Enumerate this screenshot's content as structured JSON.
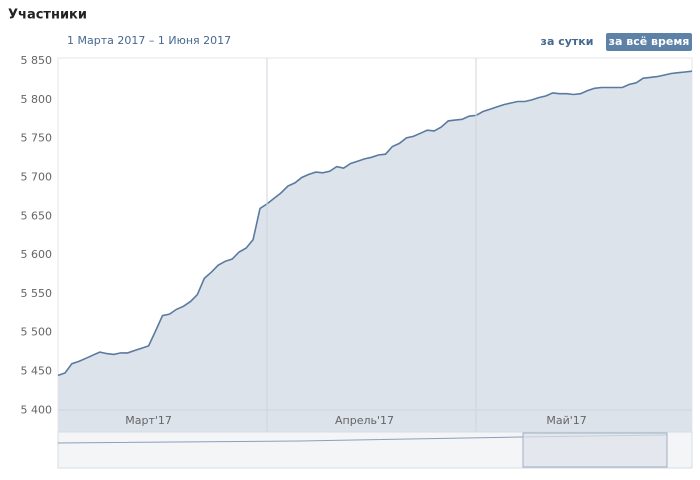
{
  "header": {
    "title": "Участники",
    "period": "1 Марта 2017 – 1 Июня 2017",
    "buttons": [
      "за сутки",
      "за всё время"
    ]
  },
  "chart_data": {
    "type": "area",
    "categories": [
      null,
      null,
      null,
      null,
      null,
      null,
      null,
      null,
      null,
      null,
      null,
      null,
      null,
      "Март'17",
      null,
      null,
      null,
      null,
      null,
      null,
      null,
      null,
      null,
      null,
      null,
      null,
      null,
      null,
      null,
      null,
      null,
      null,
      null,
      null,
      null,
      null,
      null,
      null,
      null,
      null,
      null,
      null,
      null,
      null,
      "Апрель'17",
      null,
      null,
      null,
      null,
      null,
      null,
      null,
      null,
      null,
      null,
      null,
      null,
      null,
      null,
      null,
      null,
      null,
      null,
      null,
      null,
      null,
      null,
      null,
      null,
      null,
      null,
      null,
      null,
      "Май'17",
      null,
      null,
      null,
      null,
      null,
      null,
      null,
      null,
      null,
      null,
      null,
      null,
      null,
      null,
      null,
      null,
      null,
      null
    ],
    "values": [
      5445,
      5448,
      5460,
      5463,
      5467,
      5471,
      5475,
      5473,
      5472,
      5474,
      5474,
      5477,
      5480,
      5483,
      5502,
      5522,
      5524,
      5530,
      5534,
      5540,
      5549,
      5570,
      5578,
      5587,
      5592,
      5595,
      5604,
      5609,
      5620,
      5660,
      5666,
      5673,
      5680,
      5689,
      5693,
      5700,
      5704,
      5707,
      5706,
      5708,
      5714,
      5712,
      5718,
      5721,
      5724,
      5726,
      5729,
      5730,
      5740,
      5744,
      5751,
      5753,
      5757,
      5761,
      5760,
      5765,
      5773,
      5774,
      5775,
      5779,
      5780,
      5785,
      5788,
      5791,
      5794,
      5796,
      5798,
      5798,
      5800,
      5803,
      5805,
      5809,
      5808,
      5808,
      5807,
      5808,
      5812,
      5815,
      5816,
      5816,
      5816,
      5816,
      5820,
      5822,
      5828,
      5829,
      5830,
      5832,
      5834,
      5835,
      5836,
      5837
    ],
    "color": "#5a7aa0",
    "fill": "#dde3ea",
    "ylim": [
      5372,
      5854
    ],
    "yticks": [
      {
        "value": 5400,
        "label": "5 400"
      },
      {
        "value": 5450,
        "label": "5 450"
      },
      {
        "value": 5500,
        "label": "5 500"
      },
      {
        "value": 5550,
        "label": "5 550"
      },
      {
        "value": 5600,
        "label": "5 600"
      },
      {
        "value": 5650,
        "label": "5 650"
      },
      {
        "value": 5700,
        "label": "5 700"
      },
      {
        "value": 5750,
        "label": "5 750"
      },
      {
        "value": 5800,
        "label": "5 800"
      },
      {
        "value": 5850,
        "label": "5 850"
      }
    ],
    "grid": false
  }
}
